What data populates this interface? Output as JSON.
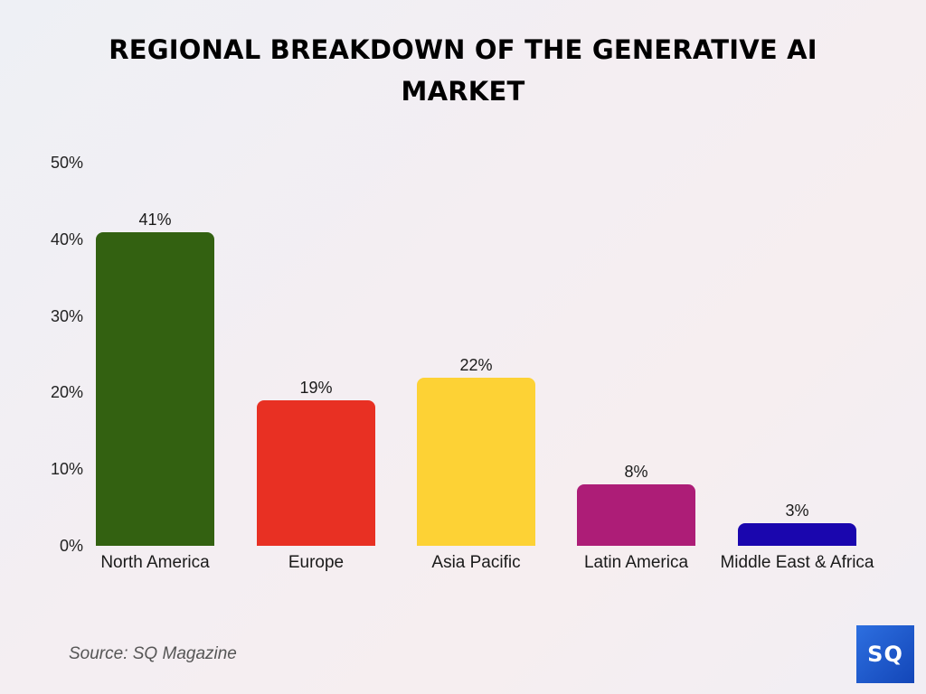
{
  "title_line1": "REGIONAL BREAKDOWN OF THE GENERATIVE AI",
  "title_line2": "MARKET",
  "y_ticks": [
    "50%",
    "40%",
    "30%",
    "20%",
    "10%",
    "0%"
  ],
  "source": "Source: SQ Magazine",
  "logo_text": "SQ",
  "bars": [
    {
      "category": "North America",
      "value": 41,
      "label": "41%",
      "color": "#336111"
    },
    {
      "category": "Europe",
      "value": 19,
      "label": "19%",
      "color": "#e83023"
    },
    {
      "category": "Asia Pacific",
      "value": 22,
      "label": "22%",
      "color": "#fdd235"
    },
    {
      "category": "Latin America",
      "value": 8,
      "label": "8%",
      "color": "#ad1d77"
    },
    {
      "category": "Middle East & Africa",
      "value": 3,
      "label": "3%",
      "color": "#1a06ae"
    }
  ],
  "chart_data": {
    "type": "bar",
    "title": "REGIONAL BREAKDOWN OF THE GENERATIVE AI MARKET",
    "categories": [
      "North America",
      "Europe",
      "Asia Pacific",
      "Latin America",
      "Middle East & Africa"
    ],
    "values": [
      41,
      19,
      22,
      8,
      3
    ],
    "colors": [
      "#336111",
      "#e83023",
      "#fdd235",
      "#ad1d77",
      "#1a06ae"
    ],
    "xlabel": "",
    "ylabel": "",
    "ylim": [
      0,
      50
    ],
    "y_ticks": [
      0,
      10,
      20,
      30,
      40,
      50
    ],
    "y_tick_format": "percent",
    "data_labels": [
      "41%",
      "19%",
      "22%",
      "8%",
      "3%"
    ],
    "grid": false,
    "legend": "none",
    "source": "Source: SQ Magazine"
  }
}
